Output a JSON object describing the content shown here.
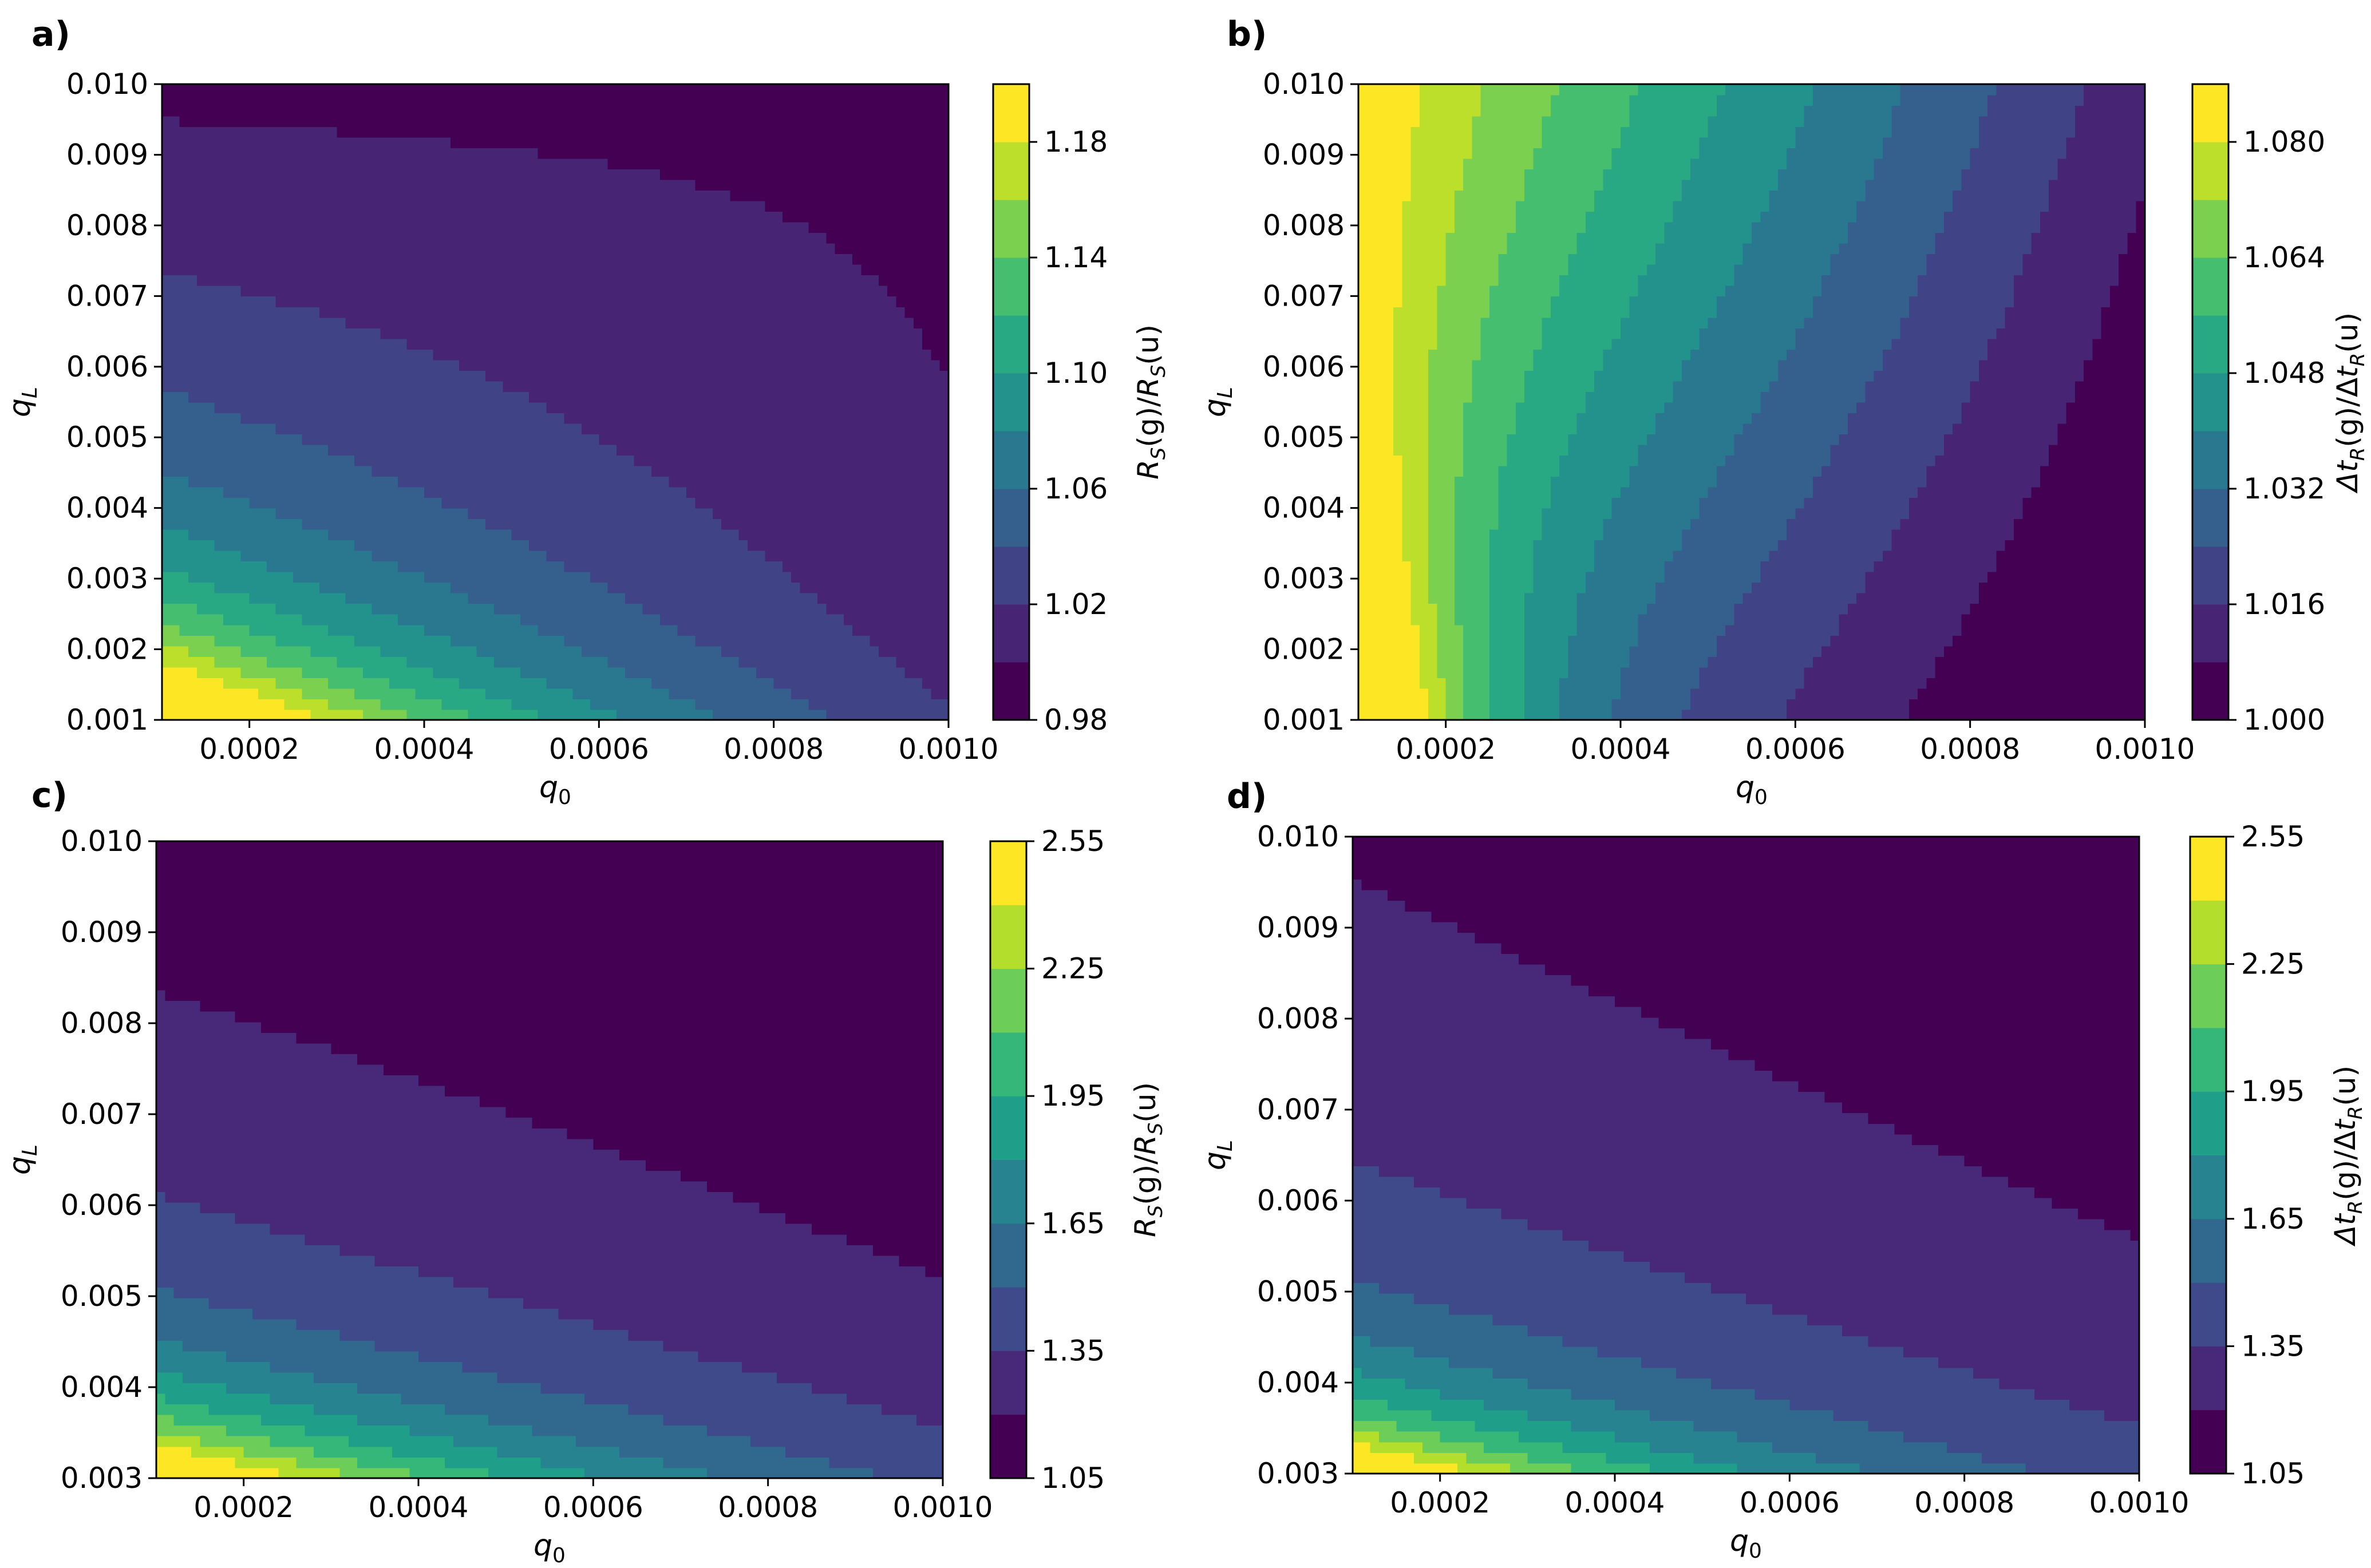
{
  "colors": {
    "viridis": [
      "#440154",
      "#482878",
      "#3e4a89",
      "#31688e",
      "#26838f",
      "#1f9e89",
      "#35b779",
      "#6dcd59",
      "#b4de2c",
      "#fde725"
    ],
    "axis": "#000000"
  },
  "chart_data": [
    {
      "type": "contourf",
      "panel_label": "a)",
      "xlabel_main": "q",
      "xlabel_sub": "0",
      "ylabel_main": "q",
      "ylabel_sub": "L",
      "xlim": [
        0.0001,
        0.001
      ],
      "ylim": [
        0.001,
        0.01
      ],
      "x_ticks": [
        0.0002,
        0.0004,
        0.0006,
        0.0008,
        0.001
      ],
      "x_tick_labels": [
        "0.0002",
        "0.0004",
        "0.0006",
        "0.0008",
        "0.0010"
      ],
      "y_ticks": [
        0.001,
        0.002,
        0.003,
        0.004,
        0.005,
        0.006,
        0.007,
        0.008,
        0.009,
        0.01
      ],
      "y_tick_labels": [
        "0.001",
        "0.002",
        "0.003",
        "0.004",
        "0.005",
        "0.006",
        "0.007",
        "0.008",
        "0.009",
        "0.010"
      ],
      "levels": [
        0.98,
        1.0,
        1.02,
        1.04,
        1.06,
        1.08,
        1.1,
        1.12,
        1.14,
        1.16,
        1.18,
        1.2
      ],
      "colorbar_ticks": [
        0.98,
        1.02,
        1.06,
        1.1,
        1.14,
        1.18
      ],
      "colorbar_tick_labels": [
        "0.98",
        "1.02",
        "1.06",
        "1.10",
        "1.14",
        "1.18"
      ],
      "colorbar_label": "R_S(g)/R_S(u)",
      "cb_label_parts": [
        "R",
        "S",
        "(g)/",
        "R",
        "S",
        "(u)"
      ],
      "field": "a"
    },
    {
      "type": "contourf",
      "panel_label": "b)",
      "xlabel_main": "q",
      "xlabel_sub": "0",
      "ylabel_main": "q",
      "ylabel_sub": "L",
      "xlim": [
        0.0001,
        0.001
      ],
      "ylim": [
        0.001,
        0.01
      ],
      "x_ticks": [
        0.0002,
        0.0004,
        0.0006,
        0.0008,
        0.001
      ],
      "x_tick_labels": [
        "0.0002",
        "0.0004",
        "0.0006",
        "0.0008",
        "0.0010"
      ],
      "y_ticks": [
        0.001,
        0.002,
        0.003,
        0.004,
        0.005,
        0.006,
        0.007,
        0.008,
        0.009,
        0.01
      ],
      "y_tick_labels": [
        "0.001",
        "0.002",
        "0.003",
        "0.004",
        "0.005",
        "0.006",
        "0.007",
        "0.008",
        "0.009",
        "0.010"
      ],
      "levels": [
        1.0,
        1.008,
        1.016,
        1.024,
        1.032,
        1.04,
        1.048,
        1.056,
        1.064,
        1.072,
        1.08,
        1.088
      ],
      "colorbar_ticks": [
        1.0,
        1.016,
        1.032,
        1.048,
        1.064,
        1.08
      ],
      "colorbar_tick_labels": [
        "1.000",
        "1.016",
        "1.032",
        "1.048",
        "1.064",
        "1.080"
      ],
      "colorbar_label": "Δt_R(g)/Δt_R(u)",
      "cb_label_parts": [
        "Δt",
        "R",
        "(g)/Δ",
        "t",
        "R",
        "(u)"
      ],
      "field": "b"
    },
    {
      "type": "contourf",
      "panel_label": "c)",
      "xlabel_main": "q",
      "xlabel_sub": "0",
      "ylabel_main": "q",
      "ylabel_sub": "L",
      "xlim": [
        0.0001,
        0.001
      ],
      "ylim": [
        0.003,
        0.01
      ],
      "x_ticks": [
        0.0002,
        0.0004,
        0.0006,
        0.0008,
        0.001
      ],
      "x_tick_labels": [
        "0.0002",
        "0.0004",
        "0.0006",
        "0.0008",
        "0.0010"
      ],
      "y_ticks": [
        0.003,
        0.004,
        0.005,
        0.006,
        0.007,
        0.008,
        0.009,
        0.01
      ],
      "y_tick_labels": [
        "0.003",
        "0.004",
        "0.005",
        "0.006",
        "0.007",
        "0.008",
        "0.009",
        "0.010"
      ],
      "levels": [
        1.05,
        1.2,
        1.35,
        1.5,
        1.65,
        1.8,
        1.95,
        2.1,
        2.25,
        2.4,
        2.55
      ],
      "colorbar_ticks": [
        1.05,
        1.35,
        1.65,
        1.95,
        2.25,
        2.55
      ],
      "colorbar_tick_labels": [
        "1.05",
        "1.35",
        "1.65",
        "1.95",
        "2.25",
        "2.55"
      ],
      "colorbar_label": "R_S(g)/R_S(u)",
      "cb_label_parts": [
        "R",
        "S",
        "(g)/",
        "R",
        "S",
        "(u)"
      ],
      "field": "c"
    },
    {
      "type": "contourf",
      "panel_label": "d)",
      "xlabel_main": "q",
      "xlabel_sub": "0",
      "ylabel_main": "q",
      "ylabel_sub": "L",
      "xlim": [
        0.0001,
        0.001
      ],
      "ylim": [
        0.003,
        0.01
      ],
      "x_ticks": [
        0.0002,
        0.0004,
        0.0006,
        0.0008,
        0.001
      ],
      "x_tick_labels": [
        "0.0002",
        "0.0004",
        "0.0006",
        "0.0008",
        "0.0010"
      ],
      "y_ticks": [
        0.003,
        0.004,
        0.005,
        0.006,
        0.007,
        0.008,
        0.009,
        0.01
      ],
      "y_tick_labels": [
        "0.003",
        "0.004",
        "0.005",
        "0.006",
        "0.007",
        "0.008",
        "0.009",
        "0.010"
      ],
      "levels": [
        1.05,
        1.2,
        1.35,
        1.5,
        1.65,
        1.8,
        1.95,
        2.1,
        2.25,
        2.4,
        2.55
      ],
      "colorbar_ticks": [
        1.05,
        1.35,
        1.65,
        1.95,
        2.25,
        2.55
      ],
      "colorbar_tick_labels": [
        "1.05",
        "1.35",
        "1.65",
        "1.95",
        "2.25",
        "2.55"
      ],
      "colorbar_label": "Δt_R(g)/Δt_R(u)",
      "cb_label_parts": [
        "Δt",
        "R",
        "(g)/Δ",
        "t",
        "R",
        "(u)"
      ],
      "field": "d"
    }
  ]
}
